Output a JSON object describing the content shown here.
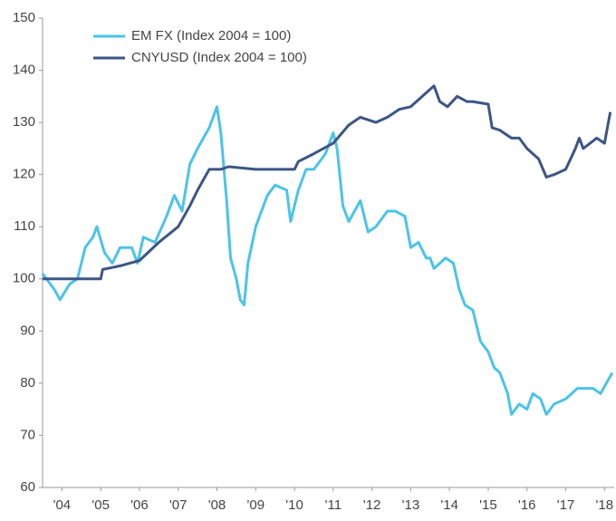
{
  "chart_data": {
    "type": "line",
    "series": [
      {
        "name": "EM FX (Index 2004 = 100)",
        "color": "#4cc3ea",
        "x": [
          2004.0,
          2004.3,
          2004.45,
          2004.7,
          2004.9,
          2005.1,
          2005.3,
          2005.4,
          2005.6,
          2005.8,
          2006.0,
          2006.3,
          2006.45,
          2006.6,
          2006.9,
          2007.2,
          2007.4,
          2007.6,
          2007.8,
          2008.0,
          2008.3,
          2008.5,
          2008.6,
          2008.75,
          2008.85,
          2009.0,
          2009.1,
          2009.2,
          2009.3,
          2009.5,
          2009.8,
          2010.0,
          2010.3,
          2010.4,
          2010.6,
          2010.8,
          2011.0,
          2011.3,
          2011.5,
          2011.6,
          2011.75,
          2011.9,
          2012.2,
          2012.4,
          2012.6,
          2012.9,
          2013.1,
          2013.35,
          2013.5,
          2013.7,
          2013.9,
          2014.0,
          2014.1,
          2014.4,
          2014.6,
          2014.75,
          2014.9,
          2015.1,
          2015.3,
          2015.5,
          2015.65,
          2015.8,
          2016.0,
          2016.1,
          2016.3,
          2016.5,
          2016.65,
          2016.85,
          2017.0,
          2017.2,
          2017.5,
          2017.8,
          2018.0,
          2018.2,
          2018.4,
          2018.55,
          2018.7
        ],
        "values": [
          101,
          98,
          96,
          99,
          100,
          106,
          108,
          110,
          105,
          103,
          106,
          106,
          103,
          108,
          107,
          112,
          116,
          113,
          122,
          125,
          129,
          133,
          128,
          115,
          104,
          100,
          96,
          95,
          103,
          110,
          116,
          118,
          117,
          111,
          117,
          121,
          121,
          124,
          128,
          125,
          114,
          111,
          115,
          109,
          110,
          113,
          113,
          112,
          106,
          107,
          104,
          104,
          102,
          104,
          103,
          98,
          95,
          94,
          88,
          86,
          83,
          82,
          78,
          74,
          76,
          75,
          78,
          77,
          74,
          76,
          77,
          79,
          79,
          79,
          78,
          80,
          82
        ]
      },
      {
        "name": "CNYUSD (Index 2004 = 100)",
        "color": "#3b5686",
        "x": [
          2004.0,
          2005.5,
          2005.55,
          2006.0,
          2006.5,
          2007.0,
          2007.5,
          2007.8,
          2008.0,
          2008.3,
          2008.6,
          2008.8,
          2009.5,
          2010.5,
          2010.6,
          2011.0,
          2011.5,
          2011.9,
          2012.2,
          2012.6,
          2012.9,
          2013.2,
          2013.5,
          2013.8,
          2014.1,
          2014.25,
          2014.45,
          2014.7,
          2014.95,
          2015.1,
          2015.5,
          2015.6,
          2015.8,
          2016.1,
          2016.3,
          2016.5,
          2016.8,
          2017.0,
          2017.2,
          2017.5,
          2017.75,
          2017.85,
          2017.95,
          2018.3,
          2018.5,
          2018.65
        ],
        "values": [
          100,
          100,
          101.8,
          102.5,
          103.5,
          107,
          110,
          114,
          117,
          121,
          121,
          121.5,
          121,
          121,
          122.5,
          124,
          126,
          129.5,
          131,
          130,
          131,
          132.5,
          133,
          135,
          137,
          134,
          133,
          135,
          134,
          134,
          133.5,
          129,
          128.5,
          127,
          127,
          125,
          123,
          119.5,
          120,
          121,
          125,
          127,
          125,
          127,
          126,
          132
        ]
      }
    ],
    "xlim": [
      2004,
      2018.75
    ],
    "xticks": [
      {
        "value": 2004.5,
        "label": "'04"
      },
      {
        "value": 2005.5,
        "label": "'05"
      },
      {
        "value": 2006.5,
        "label": "'06"
      },
      {
        "value": 2007.5,
        "label": "'07"
      },
      {
        "value": 2008.5,
        "label": "'08"
      },
      {
        "value": 2009.5,
        "label": "'09"
      },
      {
        "value": 2010.5,
        "label": "'10"
      },
      {
        "value": 2011.5,
        "label": "'11"
      },
      {
        "value": 2012.5,
        "label": "'12"
      },
      {
        "value": 2013.5,
        "label": "'13"
      },
      {
        "value": 2014.5,
        "label": "'14"
      },
      {
        "value": 2015.5,
        "label": "'15"
      },
      {
        "value": 2016.5,
        "label": "'16"
      },
      {
        "value": 2017.5,
        "label": "'17"
      },
      {
        "value": 2018.5,
        "label": "'18"
      }
    ],
    "ylim": [
      60,
      150
    ],
    "yticks": [
      60,
      70,
      80,
      90,
      100,
      110,
      120,
      130,
      140,
      150
    ],
    "legend": "top-left"
  }
}
